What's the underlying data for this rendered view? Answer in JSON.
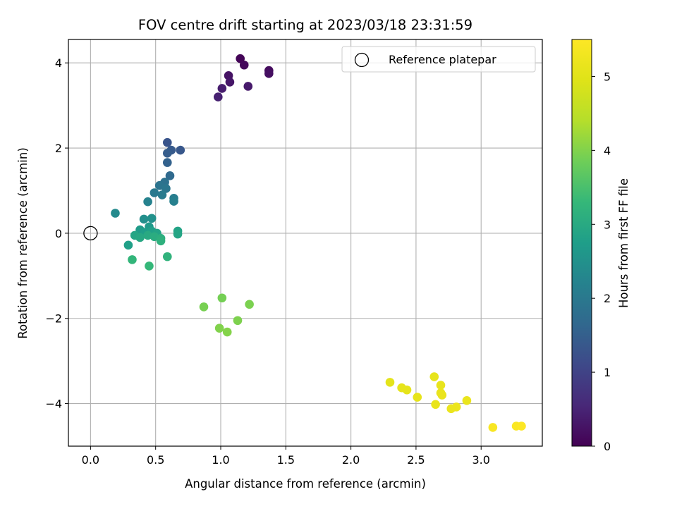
{
  "chart_data": {
    "type": "scatter",
    "title": "FOV centre drift starting at 2023/03/18 23:31:59",
    "xlabel": "Angular distance from reference (arcmin)",
    "ylabel": "Rotation from reference (arcmin)",
    "xlim": [
      -0.17,
      3.47
    ],
    "ylim": [
      -5.0,
      4.55
    ],
    "xticks": [
      0.0,
      0.5,
      1.0,
      1.5,
      2.0,
      2.5,
      3.0
    ],
    "xtick_labels": [
      "0.0",
      "0.5",
      "1.0",
      "1.5",
      "2.0",
      "2.5",
      "3.0"
    ],
    "yticks": [
      -4,
      -2,
      0,
      2,
      4
    ],
    "ytick_labels": [
      "−4",
      "−2",
      "0",
      "2",
      "4"
    ],
    "grid": true,
    "legend": {
      "position": "top-right",
      "entries": [
        "Reference platepar"
      ]
    },
    "reference_point": {
      "x": 0.0,
      "y": 0.0
    },
    "colorbar": {
      "label": "Hours from first FF file",
      "colormap": "viridis",
      "range": [
        0,
        5.5
      ],
      "ticks": [
        0,
        1,
        2,
        3,
        4,
        5
      ],
      "tick_labels": [
        "0",
        "1",
        "2",
        "3",
        "4",
        "5"
      ]
    },
    "points": [
      {
        "x": 1.15,
        "y": 4.1,
        "t": 0.05
      },
      {
        "x": 1.18,
        "y": 3.95,
        "t": 0.1
      },
      {
        "x": 1.37,
        "y": 3.82,
        "t": 0.15
      },
      {
        "x": 1.37,
        "y": 3.75,
        "t": 0.2
      },
      {
        "x": 1.06,
        "y": 3.7,
        "t": 0.25
      },
      {
        "x": 1.07,
        "y": 3.55,
        "t": 0.3
      },
      {
        "x": 1.21,
        "y": 3.45,
        "t": 0.35
      },
      {
        "x": 1.01,
        "y": 3.4,
        "t": 0.4
      },
      {
        "x": 0.98,
        "y": 3.2,
        "t": 0.45
      },
      {
        "x": 0.59,
        "y": 2.13,
        "t": 1.3
      },
      {
        "x": 0.69,
        "y": 1.95,
        "t": 1.35
      },
      {
        "x": 0.62,
        "y": 1.95,
        "t": 1.4
      },
      {
        "x": 0.59,
        "y": 1.88,
        "t": 1.45
      },
      {
        "x": 0.59,
        "y": 1.66,
        "t": 1.55
      },
      {
        "x": 0.61,
        "y": 1.35,
        "t": 1.7
      },
      {
        "x": 0.57,
        "y": 1.2,
        "t": 1.85
      },
      {
        "x": 0.53,
        "y": 1.12,
        "t": 1.9
      },
      {
        "x": 0.58,
        "y": 1.05,
        "t": 1.95
      },
      {
        "x": 0.49,
        "y": 0.95,
        "t": 2.0
      },
      {
        "x": 0.55,
        "y": 0.9,
        "t": 2.05
      },
      {
        "x": 0.64,
        "y": 0.82,
        "t": 2.1
      },
      {
        "x": 0.64,
        "y": 0.75,
        "t": 2.15
      },
      {
        "x": 0.44,
        "y": 0.74,
        "t": 2.2
      },
      {
        "x": 0.19,
        "y": 0.47,
        "t": 2.35
      },
      {
        "x": 0.41,
        "y": 0.33,
        "t": 2.45
      },
      {
        "x": 0.47,
        "y": 0.35,
        "t": 2.5
      },
      {
        "x": 0.45,
        "y": 0.15,
        "t": 2.65
      },
      {
        "x": 0.38,
        "y": 0.08,
        "t": 2.7
      },
      {
        "x": 0.42,
        "y": 0.02,
        "t": 2.75
      },
      {
        "x": 0.47,
        "y": 0.05,
        "t": 2.8
      },
      {
        "x": 0.51,
        "y": 0.0,
        "t": 2.85
      },
      {
        "x": 0.34,
        "y": -0.05,
        "t": 2.9
      },
      {
        "x": 0.38,
        "y": -0.1,
        "t": 2.95
      },
      {
        "x": 0.44,
        "y": -0.05,
        "t": 3.0
      },
      {
        "x": 0.49,
        "y": -0.08,
        "t": 3.05
      },
      {
        "x": 0.54,
        "y": -0.12,
        "t": 3.1
      },
      {
        "x": 0.54,
        "y": -0.18,
        "t": 3.15
      },
      {
        "x": 0.67,
        "y": 0.05,
        "t": 2.85
      },
      {
        "x": 0.67,
        "y": -0.02,
        "t": 2.9
      },
      {
        "x": 0.29,
        "y": -0.28,
        "t": 2.8
      },
      {
        "x": 0.59,
        "y": -0.55,
        "t": 3.2
      },
      {
        "x": 0.32,
        "y": -0.62,
        "t": 3.25
      },
      {
        "x": 0.45,
        "y": -0.77,
        "t": 3.3
      },
      {
        "x": 1.01,
        "y": -1.52,
        "t": 3.9
      },
      {
        "x": 1.22,
        "y": -1.67,
        "t": 3.95
      },
      {
        "x": 0.87,
        "y": -1.73,
        "t": 3.92
      },
      {
        "x": 1.13,
        "y": -2.05,
        "t": 3.97
      },
      {
        "x": 0.99,
        "y": -2.23,
        "t": 4.0
      },
      {
        "x": 1.05,
        "y": -2.32,
        "t": 4.02
      },
      {
        "x": 2.64,
        "y": -3.37,
        "t": 5.1
      },
      {
        "x": 2.3,
        "y": -3.5,
        "t": 5.05
      },
      {
        "x": 2.69,
        "y": -3.57,
        "t": 5.12
      },
      {
        "x": 2.39,
        "y": -3.63,
        "t": 5.07
      },
      {
        "x": 2.43,
        "y": -3.68,
        "t": 5.08
      },
      {
        "x": 2.69,
        "y": -3.75,
        "t": 5.14
      },
      {
        "x": 2.7,
        "y": -3.8,
        "t": 5.15
      },
      {
        "x": 2.51,
        "y": -3.85,
        "t": 5.09
      },
      {
        "x": 2.89,
        "y": -3.93,
        "t": 5.16
      },
      {
        "x": 2.65,
        "y": -4.02,
        "t": 5.13
      },
      {
        "x": 2.81,
        "y": -4.08,
        "t": 5.18
      },
      {
        "x": 2.77,
        "y": -4.12,
        "t": 5.17
      },
      {
        "x": 3.27,
        "y": -4.53,
        "t": 5.45
      },
      {
        "x": 3.31,
        "y": -4.53,
        "t": 5.48
      },
      {
        "x": 3.09,
        "y": -4.56,
        "t": 5.4
      }
    ]
  }
}
